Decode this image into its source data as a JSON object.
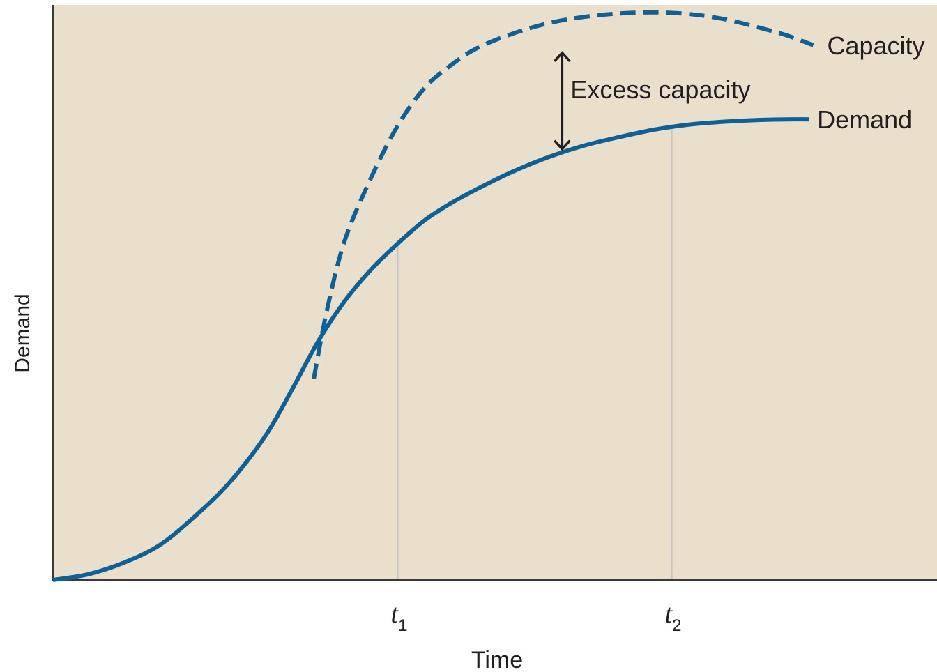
{
  "colors": {
    "plot_bg": "#e9dfcb",
    "curve": "#0d6199",
    "guide": "#c4c4c4",
    "axis": "#3b3b3b",
    "text": "#231f20",
    "arrow": "#231f20"
  },
  "chart_data": {
    "type": "line",
    "xlabel": "Time",
    "ylabel": "Demand",
    "xlim": [
      0,
      100
    ],
    "ylim": [
      0,
      100
    ],
    "grid": false,
    "ticks": [
      {
        "base": "t",
        "sub": "1",
        "x": 39
      },
      {
        "base": "t",
        "sub": "2",
        "x": 70
      }
    ],
    "series": [
      {
        "name": "Demand",
        "style": "solid",
        "x": [
          0,
          4,
          8,
          12,
          16,
          20,
          24,
          27,
          30,
          33,
          36,
          39,
          42,
          45,
          48,
          52,
          56,
          60,
          64,
          68,
          72,
          76,
          80,
          83,
          85.5
        ],
        "y": [
          0,
          1,
          3,
          6,
          11,
          17,
          25,
          33,
          41.5,
          48.5,
          54,
          58.5,
          62.5,
          65.5,
          68,
          71,
          73.5,
          75.5,
          77,
          78.3,
          79.2,
          79.7,
          80,
          80.1,
          80.1
        ]
      },
      {
        "name": "Capacity",
        "style": "dashed",
        "x": [
          29.5,
          31,
          33,
          36,
          39,
          42,
          45,
          48,
          52,
          56,
          60,
          64,
          68,
          72,
          76,
          80,
          83,
          86
        ],
        "y": [
          35,
          47,
          59,
          70,
          79,
          85.5,
          89.5,
          92.5,
          95,
          96.8,
          97.9,
          98.5,
          98.7,
          98.4,
          97.5,
          96,
          94.7,
          93
        ]
      }
    ],
    "annotations": {
      "excess_label": "Excess capacity",
      "arrow_x": 57.6,
      "arrow_from_y": 74.7,
      "arrow_to_y": 91.9
    }
  }
}
